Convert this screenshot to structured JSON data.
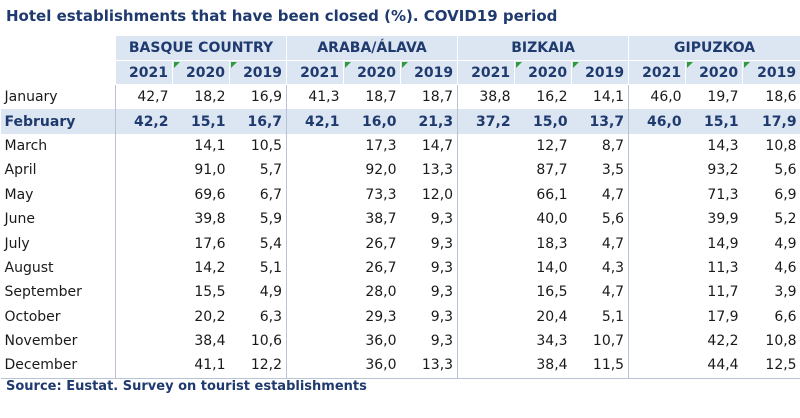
{
  "title": "Hotel establishments that have been closed (%). COVID19 period",
  "table": {
    "groups": [
      "BASQUE COUNTRY",
      "ARABA/ÁLAVA",
      "BIZKAIA",
      "GIPUZKOA"
    ],
    "years": [
      "2021",
      "2020",
      "2019",
      "2021",
      "2020",
      "2019",
      "2021",
      "2020",
      "2019",
      "2021",
      "2020",
      "2019"
    ],
    "rows": [
      {
        "label": "January",
        "cells": [
          "42,7",
          "18,2",
          "16,9",
          "41,3",
          "18,7",
          "18,7",
          "38,8",
          "16,2",
          "14,1",
          "46,0",
          "19,7",
          "18,6"
        ]
      },
      {
        "label": "February",
        "cells": [
          "42,2",
          "15,1",
          "16,7",
          "42,1",
          "16,0",
          "21,3",
          "37,2",
          "15,0",
          "13,7",
          "46,0",
          "15,1",
          "17,9"
        ]
      },
      {
        "label": "March",
        "cells": [
          null,
          "14,1",
          "10,5",
          null,
          "17,3",
          "14,7",
          null,
          "12,7",
          "8,7",
          null,
          "14,3",
          "10,8"
        ]
      },
      {
        "label": "April",
        "cells": [
          null,
          "91,0",
          "5,7",
          null,
          "92,0",
          "13,3",
          null,
          "87,7",
          "3,5",
          null,
          "93,2",
          "5,6"
        ]
      },
      {
        "label": "May",
        "cells": [
          null,
          "69,6",
          "6,7",
          null,
          "73,3",
          "12,0",
          null,
          "66,1",
          "4,7",
          null,
          "71,3",
          "6,9"
        ]
      },
      {
        "label": "June",
        "cells": [
          null,
          "39,8",
          "5,9",
          null,
          "38,7",
          "9,3",
          null,
          "40,0",
          "5,6",
          null,
          "39,9",
          "5,2"
        ]
      },
      {
        "label": "July",
        "cells": [
          null,
          "17,6",
          "5,4",
          null,
          "26,7",
          "9,3",
          null,
          "18,3",
          "4,7",
          null,
          "14,9",
          "4,9"
        ]
      },
      {
        "label": "August",
        "cells": [
          null,
          "14,2",
          "5,1",
          null,
          "26,7",
          "9,3",
          null,
          "14,0",
          "4,3",
          null,
          "11,3",
          "4,6"
        ]
      },
      {
        "label": "September",
        "cells": [
          null,
          "15,5",
          "4,9",
          null,
          "28,0",
          "9,3",
          null,
          "16,5",
          "4,7",
          null,
          "11,7",
          "3,9"
        ]
      },
      {
        "label": "October",
        "cells": [
          null,
          "20,2",
          "6,3",
          null,
          "29,3",
          "9,3",
          null,
          "20,4",
          "5,1",
          null,
          "17,9",
          "6,6"
        ]
      },
      {
        "label": "November",
        "cells": [
          null,
          "38,4",
          "10,6",
          null,
          "36,0",
          "9,3",
          null,
          "34,3",
          "10,7",
          null,
          "42,2",
          "10,8"
        ]
      },
      {
        "label": "December",
        "cells": [
          null,
          "41,1",
          "12,2",
          null,
          "36,0",
          "13,3",
          null,
          "38,4",
          "11,5",
          null,
          "44,4",
          "12,5"
        ]
      }
    ]
  },
  "source": "Source: Eustat. Survey on tourist establishments"
}
